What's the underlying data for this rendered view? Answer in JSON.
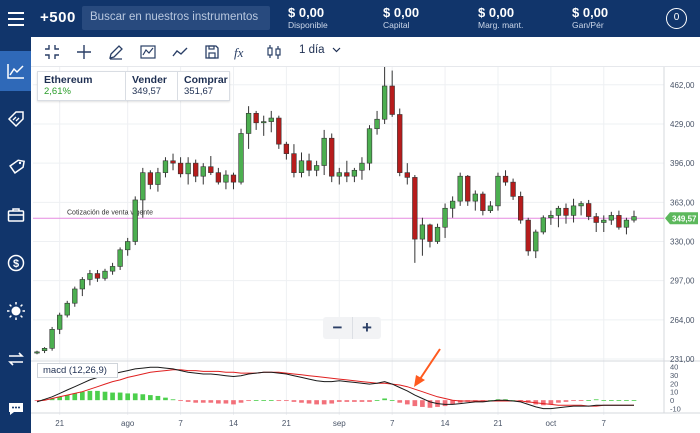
{
  "topbar": {
    "logo": "+500",
    "search_placeholder": "Buscar en nuestros instrumentos",
    "stats": [
      {
        "value": "$ 0,00",
        "label": "Disponible"
      },
      {
        "value": "$ 0,00",
        "label": "Capital"
      },
      {
        "value": "$ 0,00",
        "label": "Marg. mant."
      },
      {
        "value": "$ 0,00",
        "label": "Gan/Pér"
      }
    ],
    "profile_badge": "0"
  },
  "sidebar": {
    "items": [
      {
        "icon": "chart-line-icon",
        "active": true
      },
      {
        "icon": "tag-arrows-icon",
        "active": false
      },
      {
        "icon": "price-tag-icon",
        "active": false
      },
      {
        "icon": "briefcase-icon",
        "active": false
      },
      {
        "icon": "dollar-circle-icon",
        "active": false
      },
      {
        "icon": "sun-icon",
        "active": false
      },
      {
        "icon": "swap-arrows-icon",
        "active": false
      },
      {
        "icon": "chat-icon",
        "active": false
      }
    ]
  },
  "toolbar": {
    "timeframe": "1 día",
    "tools": [
      "collapse-icon",
      "crosshair-icon",
      "pencil-icon",
      "indicator-icon",
      "trend-icon",
      "save-icon",
      "fx-icon",
      "candle-icon"
    ]
  },
  "instrument": {
    "name": "Ethereum",
    "change": "2,61%",
    "sell_label": "Vender",
    "sell_price": "349,57",
    "buy_label": "Comprar",
    "buy_price": "351,67"
  },
  "zoom": {
    "minus": "−",
    "plus": "+"
  },
  "chart_data": {
    "type": "candlestick",
    "price_axis_ticks": [
      "462,00",
      "429,00",
      "396,00",
      "363,00",
      "330,00",
      "297,00",
      "264,00",
      "231,00"
    ],
    "price_axis_values": [
      462,
      429,
      396,
      363,
      330,
      297,
      264,
      231
    ],
    "ylim": [
      231,
      477
    ],
    "current_price_label": "349,57",
    "current_price": 349.57,
    "current_price_line_label": "Cotización de venta vigente",
    "x_ticks": [
      "21",
      "ago",
      "7",
      "14",
      "21",
      "sep",
      "7",
      "14",
      "21",
      "oct",
      "7"
    ],
    "candles_ohlc": [
      [
        236,
        238,
        235,
        237
      ],
      [
        238,
        241,
        236,
        240
      ],
      [
        240,
        258,
        238,
        256
      ],
      [
        256,
        270,
        252,
        268
      ],
      [
        268,
        280,
        266,
        278
      ],
      [
        278,
        292,
        275,
        290
      ],
      [
        290,
        300,
        284,
        298
      ],
      [
        298,
        306,
        293,
        303
      ],
      [
        303,
        306,
        296,
        299
      ],
      [
        299,
        307,
        297,
        305
      ],
      [
        305,
        312,
        302,
        309
      ],
      [
        309,
        325,
        306,
        323
      ],
      [
        323,
        333,
        318,
        330
      ],
      [
        330,
        368,
        327,
        365
      ],
      [
        365,
        392,
        350,
        388
      ],
      [
        388,
        390,
        374,
        378
      ],
      [
        378,
        392,
        372,
        388
      ],
      [
        388,
        401,
        384,
        398
      ],
      [
        398,
        404,
        390,
        396
      ],
      [
        396,
        401,
        384,
        387
      ],
      [
        387,
        401,
        378,
        396
      ],
      [
        396,
        399,
        380,
        385
      ],
      [
        385,
        396,
        378,
        393
      ],
      [
        393,
        402,
        386,
        388
      ],
      [
        388,
        392,
        378,
        380
      ],
      [
        380,
        390,
        374,
        386
      ],
      [
        386,
        388,
        374,
        380
      ],
      [
        380,
        425,
        378,
        421
      ],
      [
        421,
        444,
        408,
        438
      ],
      [
        438,
        440,
        424,
        430
      ],
      [
        430,
        436,
        419,
        431
      ],
      [
        431,
        440,
        422,
        434
      ],
      [
        434,
        436,
        408,
        412
      ],
      [
        412,
        414,
        399,
        404
      ],
      [
        404,
        412,
        384,
        388
      ],
      [
        388,
        405,
        384,
        398
      ],
      [
        398,
        404,
        385,
        390
      ],
      [
        390,
        398,
        385,
        394
      ],
      [
        394,
        424,
        386,
        417
      ],
      [
        417,
        421,
        380,
        385
      ],
      [
        385,
        392,
        378,
        388
      ],
      [
        388,
        398,
        380,
        385
      ],
      [
        385,
        392,
        380,
        390
      ],
      [
        390,
        401,
        382,
        396
      ],
      [
        396,
        428,
        390,
        425
      ],
      [
        425,
        440,
        420,
        433
      ],
      [
        433,
        478,
        429,
        461
      ],
      [
        461,
        474,
        435,
        437
      ],
      [
        437,
        442,
        385,
        388
      ],
      [
        388,
        396,
        378,
        384
      ],
      [
        384,
        386,
        312,
        332
      ],
      [
        332,
        350,
        318,
        344
      ],
      [
        344,
        345,
        325,
        330
      ],
      [
        330,
        345,
        328,
        342
      ],
      [
        342,
        362,
        333,
        358
      ],
      [
        358,
        368,
        350,
        364
      ],
      [
        364,
        388,
        360,
        385
      ],
      [
        385,
        386,
        360,
        364
      ],
      [
        364,
        373,
        356,
        370
      ],
      [
        370,
        372,
        352,
        356
      ],
      [
        356,
        364,
        354,
        360
      ],
      [
        360,
        388,
        356,
        385
      ],
      [
        385,
        390,
        377,
        380
      ],
      [
        380,
        383,
        365,
        368
      ],
      [
        368,
        372,
        345,
        348
      ],
      [
        348,
        350,
        318,
        322
      ],
      [
        322,
        340,
        316,
        338
      ],
      [
        338,
        352,
        336,
        350
      ],
      [
        350,
        356,
        344,
        352
      ],
      [
        352,
        360,
        342,
        358
      ],
      [
        358,
        362,
        345,
        352
      ],
      [
        352,
        366,
        346,
        360
      ],
      [
        360,
        364,
        352,
        362
      ],
      [
        362,
        365,
        348,
        351
      ],
      [
        351,
        354,
        338,
        346
      ],
      [
        346,
        352,
        338,
        348
      ],
      [
        348,
        355,
        344,
        352
      ],
      [
        352,
        356,
        340,
        342
      ],
      [
        342,
        350,
        336,
        348
      ],
      [
        348,
        356,
        346,
        351
      ]
    ],
    "macd_panel": {
      "label": "macd (12,26,9)",
      "axis_ticks": [
        "40",
        "30",
        "20",
        "10",
        "0",
        "-10"
      ],
      "axis_values": [
        40,
        30,
        20,
        10,
        0,
        -10
      ],
      "ylim": [
        -14,
        44
      ],
      "macd_line": [
        -2,
        1,
        4,
        8,
        12,
        16,
        20,
        24,
        27,
        29,
        31,
        33,
        35,
        37,
        38,
        39,
        39,
        38,
        37,
        35,
        33,
        32,
        31,
        31,
        30,
        29,
        28,
        29,
        31,
        32,
        33,
        33,
        32,
        31,
        29,
        27,
        25,
        23,
        22,
        22,
        23,
        22,
        21,
        20,
        19,
        20,
        22,
        19,
        15,
        11,
        6,
        2,
        -2,
        -4,
        -5,
        -5,
        -4,
        -3,
        -2,
        -2,
        -1,
        0,
        0,
        -1,
        -2,
        -5,
        -8,
        -10,
        -10,
        -9,
        -8,
        -7,
        -7,
        -7,
        -6,
        -6,
        -6,
        -6,
        -6,
        -6
      ],
      "signal_line": [
        -1,
        0,
        2,
        4,
        6,
        8,
        10,
        13,
        16,
        19,
        22,
        24,
        27,
        29,
        31,
        33,
        34,
        35,
        36,
        36,
        35,
        35,
        34,
        34,
        34,
        33,
        33,
        32,
        32,
        32,
        33,
        33,
        33,
        32,
        31,
        30,
        29,
        28,
        27,
        26,
        25,
        24,
        23,
        22,
        21,
        20,
        20,
        19,
        18,
        16,
        13,
        10,
        7,
        4,
        2,
        0,
        -1,
        -1,
        -1,
        -1,
        -1,
        -1,
        -1,
        -1,
        -1,
        -2,
        -3,
        -4,
        -5,
        -6,
        -6,
        -6,
        -6,
        -7,
        -7,
        -6,
        -6,
        -6,
        -6,
        -6
      ],
      "histogram_sign_colors": {
        "positive": "#4ccf4c",
        "negative": "#f2707a"
      }
    }
  },
  "colors": {
    "brand": "#11356b",
    "sidebar_active": "#2f69b8",
    "bull": "#4caf50",
    "bear": "#b71c1c",
    "current_price_line": "#e58ae0",
    "current_price_tag": "#5cb85c",
    "macd_line": "#1a1a1a",
    "signal_line": "#e02020",
    "annotation_arrow": "#ff5a1f"
  }
}
